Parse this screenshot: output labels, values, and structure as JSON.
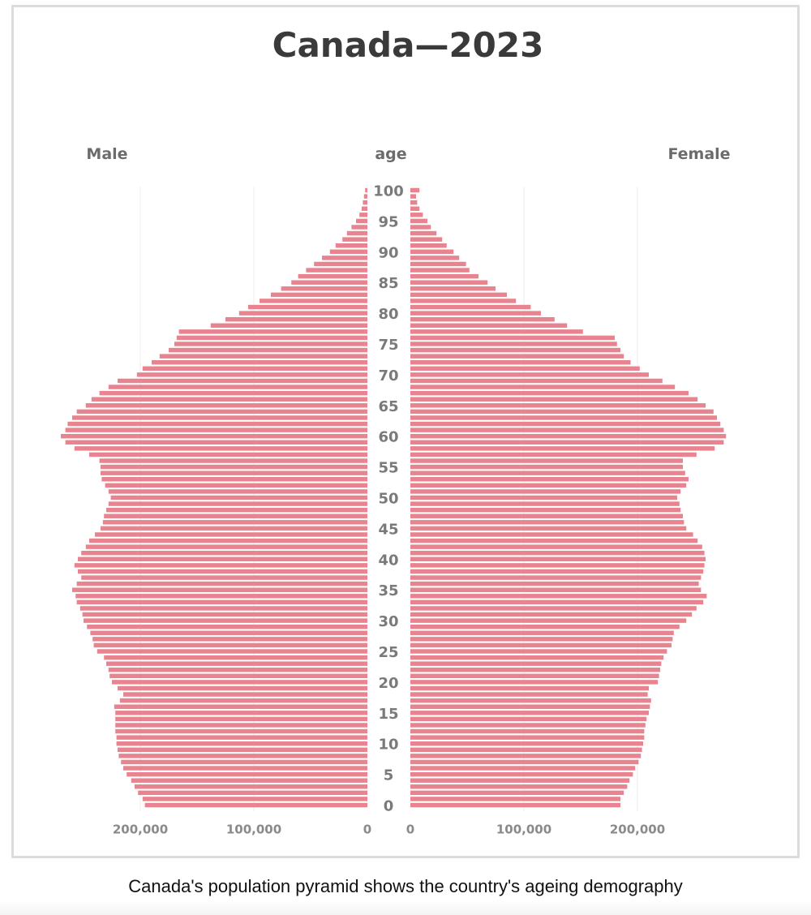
{
  "colors": {
    "bar": "#e8848f",
    "grid": "#eeeeee",
    "tick": "#8a8a8a",
    "age_tick": "#7a7a7a"
  },
  "caption": "Canada's population pyramid shows the country's ageing demography",
  "chart_data": {
    "type": "bar",
    "orientation": "horizontal-pyramid",
    "title": "Canada—2023",
    "ylabel": "age",
    "left_label": "Male",
    "right_label": "Female",
    "xlim": [
      0,
      280000
    ],
    "grid": true,
    "x_ticks": [
      0,
      100000,
      200000
    ],
    "x_tick_labels": [
      "0",
      "100,000",
      "200,000"
    ],
    "y_ticks": [
      0,
      5,
      10,
      15,
      20,
      25,
      30,
      35,
      40,
      45,
      50,
      55,
      60,
      65,
      70,
      75,
      80,
      85,
      90,
      95,
      100
    ],
    "ages": [
      0,
      1,
      2,
      3,
      4,
      5,
      6,
      7,
      8,
      9,
      10,
      11,
      12,
      13,
      14,
      15,
      16,
      17,
      18,
      19,
      20,
      21,
      22,
      23,
      24,
      25,
      26,
      27,
      28,
      29,
      30,
      31,
      32,
      33,
      34,
      35,
      36,
      37,
      38,
      39,
      40,
      41,
      42,
      43,
      44,
      45,
      46,
      47,
      48,
      49,
      50,
      51,
      52,
      53,
      54,
      55,
      56,
      57,
      58,
      59,
      60,
      61,
      62,
      63,
      64,
      65,
      66,
      67,
      68,
      69,
      70,
      71,
      72,
      73,
      74,
      75,
      76,
      77,
      78,
      79,
      80,
      81,
      82,
      83,
      84,
      85,
      86,
      87,
      88,
      89,
      90,
      91,
      92,
      93,
      94,
      95,
      96,
      97,
      98,
      99,
      100
    ],
    "series": [
      {
        "name": "Male",
        "values": [
          196000,
          198000,
          202000,
          205000,
          208000,
          212000,
          215000,
          217000,
          219000,
          220000,
          221000,
          221000,
          222000,
          222000,
          222000,
          222000,
          223000,
          218000,
          215000,
          220000,
          225000,
          227000,
          228000,
          230000,
          232000,
          238000,
          241000,
          242000,
          244000,
          247000,
          250000,
          251000,
          253000,
          256000,
          257000,
          260000,
          256000,
          252000,
          255000,
          258000,
          255000,
          252000,
          248000,
          245000,
          240000,
          235000,
          233000,
          232000,
          230000,
          228000,
          226000,
          228000,
          231000,
          234000,
          235000,
          235000,
          236000,
          245000,
          258000,
          266000,
          270000,
          266000,
          264000,
          260000,
          256000,
          248000,
          243000,
          236000,
          228000,
          220000,
          203000,
          198000,
          190000,
          183000,
          175000,
          170000,
          168000,
          166000,
          138000,
          125000,
          113000,
          105000,
          95000,
          85000,
          76000,
          67000,
          61000,
          54000,
          47000,
          40000,
          33000,
          28000,
          22000,
          18000,
          14000,
          10000,
          7000,
          5000,
          4000,
          3000,
          2000
        ]
      },
      {
        "name": "Female",
        "values": [
          185000,
          185000,
          188000,
          191000,
          193000,
          196000,
          198000,
          201000,
          203000,
          204000,
          205000,
          206000,
          206000,
          207000,
          208000,
          210000,
          211000,
          212000,
          209000,
          210000,
          218000,
          219000,
          220000,
          221000,
          223000,
          226000,
          230000,
          231000,
          232000,
          237000,
          243000,
          248000,
          252000,
          258000,
          261000,
          256000,
          254000,
          256000,
          258000,
          259000,
          260000,
          259000,
          257000,
          253000,
          249000,
          243000,
          241000,
          240000,
          238000,
          237000,
          235000,
          238000,
          243000,
          245000,
          242000,
          240000,
          240000,
          252000,
          268000,
          276000,
          278000,
          276000,
          273000,
          270000,
          267000,
          260000,
          253000,
          245000,
          233000,
          222000,
          210000,
          202000,
          194000,
          188000,
          185000,
          182000,
          180000,
          152000,
          138000,
          127000,
          115000,
          106000,
          93000,
          85000,
          75000,
          68000,
          60000,
          52000,
          49000,
          43000,
          38000,
          32000,
          28000,
          23000,
          18000,
          15000,
          11000,
          8000,
          6000,
          5000,
          8000
        ]
      }
    ]
  }
}
